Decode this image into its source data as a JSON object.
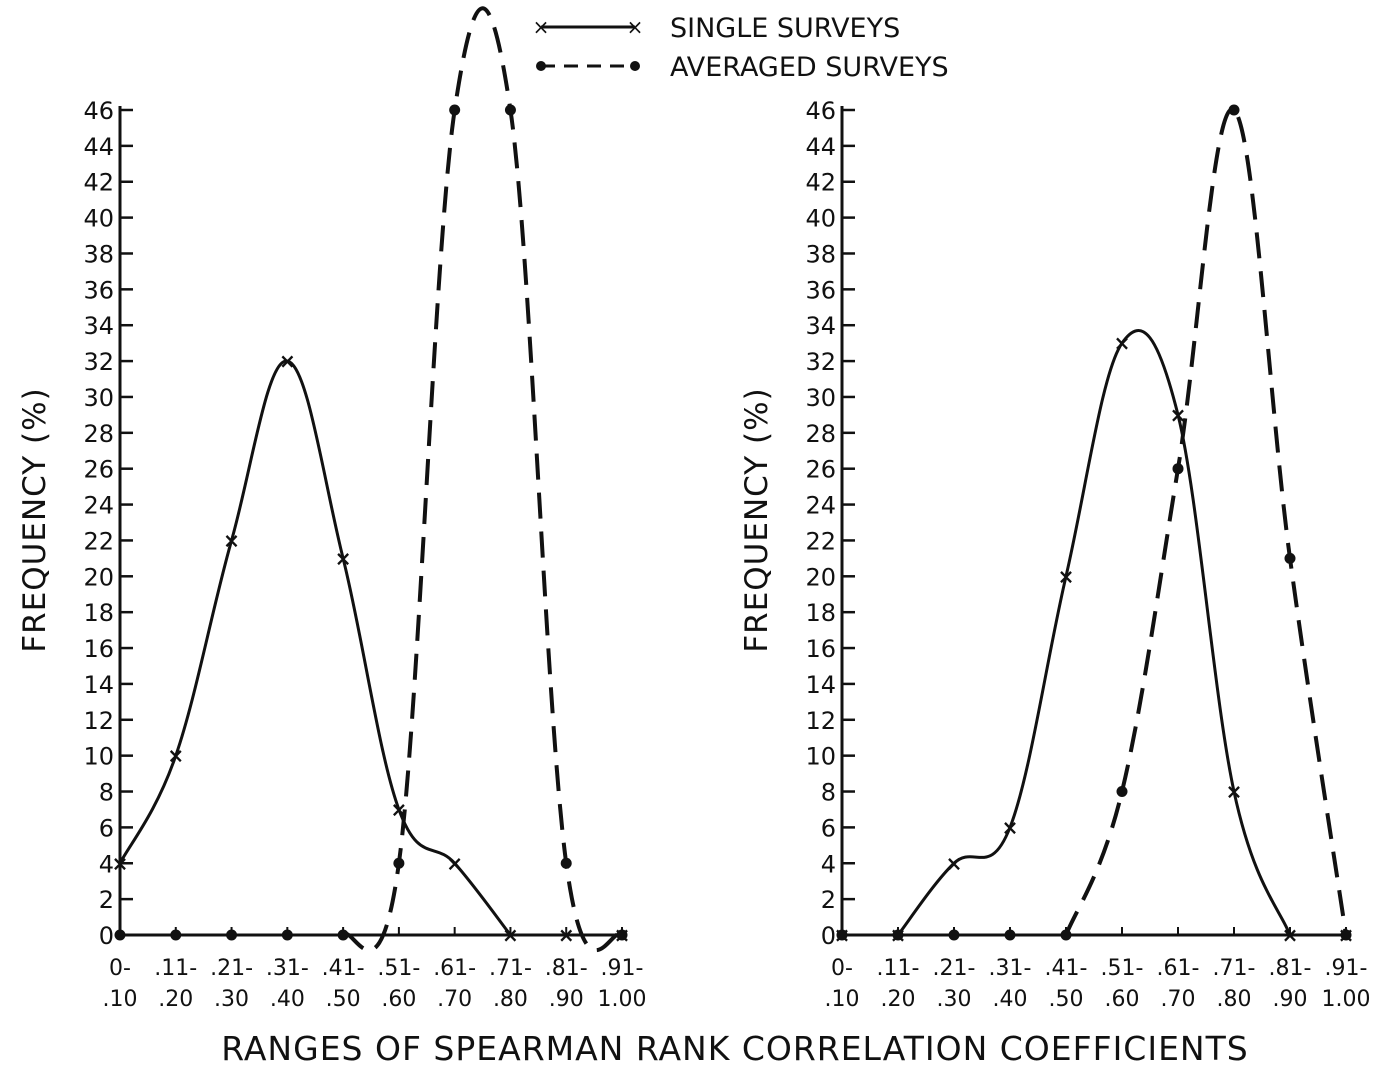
{
  "legend": {
    "single_label": "SINGLE SURVEYS",
    "averaged_label": "AVERAGED SURVEYS"
  },
  "xlabel": "RANGES OF SPEARMAN RANK CORRELATION COEFFICIENTS",
  "colors": {
    "ink": "#111111",
    "background": "#ffffff"
  },
  "chart_data": [
    {
      "type": "line",
      "ylabel": "FREQUENCY (%)",
      "ylim": [
        0,
        46
      ],
      "yticks": [
        0,
        2,
        4,
        6,
        8,
        10,
        12,
        14,
        16,
        18,
        20,
        22,
        24,
        26,
        28,
        30,
        32,
        34,
        36,
        38,
        40,
        42,
        44,
        46
      ],
      "categories": [
        {
          "top": "0-",
          "bottom": ".10"
        },
        {
          "top": ".11-",
          "bottom": ".20"
        },
        {
          "top": ".21-",
          "bottom": ".30"
        },
        {
          "top": ".31-",
          "bottom": ".40"
        },
        {
          "top": ".41-",
          "bottom": ".50"
        },
        {
          "top": ".51-",
          "bottom": ".60"
        },
        {
          "top": ".61-",
          "bottom": ".70"
        },
        {
          "top": ".71-",
          "bottom": ".80"
        },
        {
          "top": ".81-",
          "bottom": ".90"
        },
        {
          "top": ".91-",
          "bottom": "1.00"
        }
      ],
      "series": [
        {
          "name": "SINGLE SURVEYS",
          "style": "solid",
          "marker": "x",
          "values": [
            4,
            10,
            22,
            32,
            21,
            7,
            4,
            0,
            0,
            0
          ]
        },
        {
          "name": "AVERAGED SURVEYS",
          "style": "dashed",
          "marker": "dot",
          "values": [
            0,
            0,
            0,
            0,
            0,
            4,
            46,
            46,
            4,
            0
          ]
        }
      ],
      "grid": false
    },
    {
      "type": "line",
      "ylabel": "FREQUENCY (%)",
      "ylim": [
        0,
        46
      ],
      "yticks": [
        0,
        2,
        4,
        6,
        8,
        10,
        12,
        14,
        16,
        18,
        20,
        22,
        24,
        26,
        28,
        30,
        32,
        34,
        36,
        38,
        40,
        42,
        44,
        46
      ],
      "categories": [
        {
          "top": "0-",
          "bottom": ".10"
        },
        {
          "top": ".11-",
          "bottom": ".20"
        },
        {
          "top": ".21-",
          "bottom": ".30"
        },
        {
          "top": ".31-",
          "bottom": ".40"
        },
        {
          "top": ".41-",
          "bottom": ".50"
        },
        {
          "top": ".51-",
          "bottom": ".60"
        },
        {
          "top": ".61-",
          "bottom": ".70"
        },
        {
          "top": ".71-",
          "bottom": ".80"
        },
        {
          "top": ".81-",
          "bottom": ".90"
        },
        {
          "top": ".91-",
          "bottom": "1.00"
        }
      ],
      "series": [
        {
          "name": "SINGLE SURVEYS",
          "style": "solid",
          "marker": "x",
          "values": [
            0,
            0,
            4,
            6,
            20,
            33,
            29,
            8,
            0,
            0
          ]
        },
        {
          "name": "AVERAGED SURVEYS",
          "style": "dashed",
          "marker": "dot",
          "values": [
            0,
            0,
            0,
            0,
            0,
            8,
            26,
            46,
            21,
            0
          ]
        }
      ],
      "grid": false
    }
  ]
}
